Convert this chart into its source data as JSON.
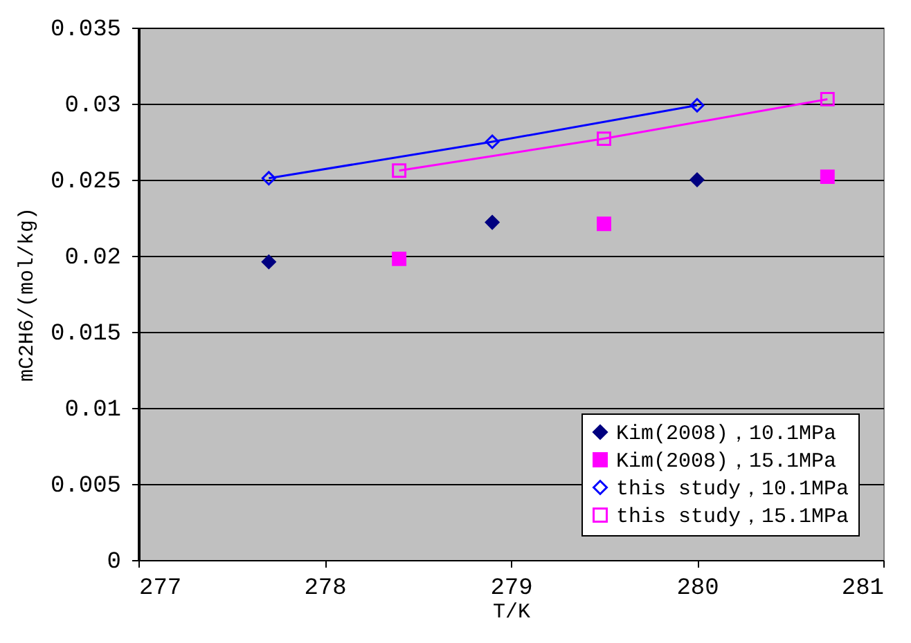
{
  "chart_data": {
    "type": "scatter",
    "xlabel": "T/K",
    "ylabel": "mC2H6/(mol/kg)",
    "xlim": [
      277,
      281
    ],
    "xticks": [
      277,
      278,
      279,
      280,
      281
    ],
    "ylim": [
      0,
      0.035
    ],
    "yticks": [
      0,
      0.005,
      0.01,
      0.015,
      0.02,
      0.025,
      0.03,
      0.035
    ],
    "grid": "y",
    "legend": "bottom right",
    "series": [
      {
        "name": "Kim(2008)，10.1MPa",
        "marker": "diamond",
        "color": "#000080",
        "x": [
          277.7,
          278.9,
          280.0
        ],
        "values": [
          0.0196,
          0.0222,
          0.025
        ]
      },
      {
        "name": "Kim(2008)，15.1MPa",
        "marker": "square",
        "color": "#ff00ff",
        "x": [
          278.4,
          279.5,
          280.7
        ],
        "values": [
          0.0198,
          0.0221,
          0.0252
        ]
      },
      {
        "name": "this study，10.1MPa",
        "type": "line",
        "marker": "diamond",
        "color": "#0000ff",
        "x": [
          277.7,
          278.9,
          280.0
        ],
        "values": [
          0.0251,
          0.0275,
          0.0299
        ]
      },
      {
        "name": "this study，15.1MPa",
        "type": "line",
        "marker": "square",
        "color": "#ff00ff",
        "x": [
          278.4,
          279.5,
          280.7
        ],
        "values": [
          0.0256,
          0.0277,
          0.0303
        ]
      }
    ]
  }
}
